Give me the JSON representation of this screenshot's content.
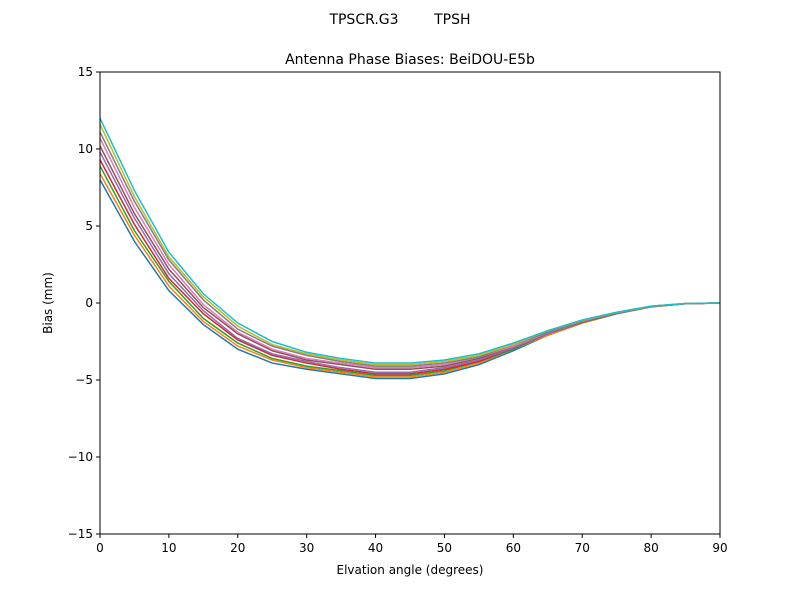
{
  "figure": {
    "suptitle": "TPSCR.G3        TPSH"
  },
  "chart_data": {
    "type": "line",
    "title": "Antenna Phase Biases: BeiDOU-E5b",
    "xlabel": "Elvation angle (degrees)",
    "ylabel": "Bias (mm)",
    "xlim": [
      0,
      90
    ],
    "ylim": [
      -15,
      15
    ],
    "xticks": [
      0,
      10,
      20,
      30,
      40,
      50,
      60,
      70,
      80,
      90
    ],
    "xtick_labels": [
      "0",
      "10",
      "20",
      "30",
      "40",
      "50",
      "60",
      "70",
      "80",
      "90"
    ],
    "yticks": [
      -15,
      -10,
      -5,
      0,
      5,
      10,
      15
    ],
    "ytick_labels": [
      "−15",
      "−10",
      "−5",
      "0",
      "5",
      "10",
      "15"
    ],
    "grid": false,
    "legend": "none",
    "x": [
      0,
      5,
      10,
      15,
      20,
      25,
      30,
      35,
      40,
      45,
      50,
      55,
      60,
      65,
      70,
      75,
      80,
      85,
      90
    ],
    "colors": [
      "#1f77b4",
      "#ff7f0e",
      "#2ca02c",
      "#d62728",
      "#9467bd",
      "#8c564b",
      "#e377c2",
      "#7f7f7f",
      "#bcbd22",
      "#17becf"
    ],
    "series": [
      {
        "values": [
          8,
          4,
          0.8,
          -1.4,
          -3,
          -3.9,
          -4.3,
          -4.6,
          -4.9,
          -4.9,
          -4.6,
          -4,
          -3.1,
          -2.1,
          -1.3,
          -0.7,
          -0.25,
          -0.05,
          0
        ]
      },
      {
        "values": [
          8.4,
          4.4,
          1.1,
          -1.2,
          -2.8,
          -3.7,
          -4.2,
          -4.5,
          -4.8,
          -4.8,
          -4.5,
          -3.9,
          -3.0,
          -2.1,
          -1.3,
          -0.69,
          -0.24,
          -0.05,
          0
        ]
      },
      {
        "values": [
          8.9,
          4.7,
          1.4,
          -1.0,
          -2.6,
          -3.6,
          -4.1,
          -4.4,
          -4.7,
          -4.7,
          -4.4,
          -3.8,
          -3.0,
          -2.0,
          -1.26,
          -0.68,
          -0.24,
          -0.05,
          0
        ]
      },
      {
        "values": [
          9.3,
          5.1,
          1.6,
          -0.7,
          -2.4,
          -3.4,
          -3.9,
          -4.3,
          -4.6,
          -4.6,
          -4.3,
          -3.8,
          -2.9,
          -2.0,
          -1.23,
          -0.67,
          -0.23,
          -0.04,
          0
        ]
      },
      {
        "values": [
          9.8,
          5.5,
          1.9,
          -0.5,
          -2.3,
          -3.3,
          -3.8,
          -4.2,
          -4.5,
          -4.5,
          -4.2,
          -3.7,
          -2.9,
          -2.0,
          -1.21,
          -0.66,
          -0.23,
          -0.04,
          0
        ]
      },
      {
        "values": [
          10.2,
          5.8,
          2.2,
          -0.3,
          -2.0,
          -3.1,
          -3.7,
          -4.0,
          -4.3,
          -4.3,
          -4.1,
          -3.6,
          -2.8,
          -1.9,
          -1.19,
          -0.64,
          -0.22,
          -0.04,
          0
        ]
      },
      {
        "values": [
          10.7,
          6.2,
          2.5,
          -0.1,
          -1.9,
          -3.0,
          -3.6,
          -3.9,
          -4.2,
          -4.2,
          -4.0,
          -3.5,
          -2.8,
          -1.9,
          -1.17,
          -0.63,
          -0.22,
          -0.04,
          0
        ]
      },
      {
        "values": [
          11.1,
          6.6,
          2.8,
          0.2,
          -1.7,
          -2.8,
          -3.4,
          -3.8,
          -4.1,
          -4.1,
          -3.9,
          -3.5,
          -2.7,
          -1.9,
          -1.14,
          -0.62,
          -0.21,
          -0.03,
          0
        ]
      },
      {
        "values": [
          11.6,
          6.9,
          3.0,
          0.4,
          -1.5,
          -2.7,
          -3.3,
          -3.7,
          -4.0,
          -4.0,
          -3.8,
          -3.4,
          -2.7,
          -1.8,
          -1.12,
          -0.61,
          -0.21,
          -0.03,
          0
        ]
      },
      {
        "values": [
          12,
          7.3,
          3.3,
          0.6,
          -1.3,
          -2.5,
          -3.2,
          -3.6,
          -3.9,
          -3.9,
          -3.7,
          -3.3,
          -2.6,
          -1.8,
          -1.1,
          -0.6,
          -0.2,
          -0.03,
          0
        ]
      }
    ]
  }
}
